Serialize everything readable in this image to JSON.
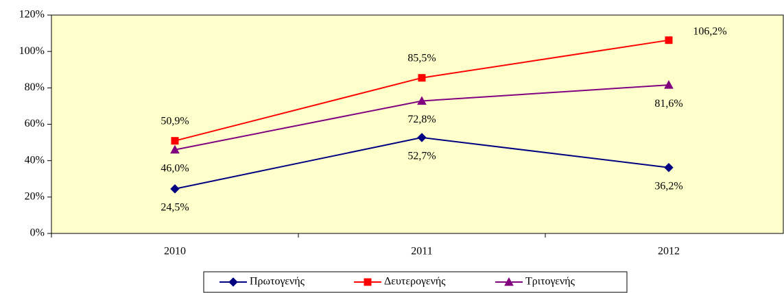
{
  "chart_data": {
    "type": "line",
    "categories": [
      "2010",
      "2011",
      "2012"
    ],
    "series": [
      {
        "name": "Πρωτογενής",
        "color": "#000080",
        "marker": "diamond",
        "values": [
          24.5,
          52.7,
          36.2
        ],
        "value_labels": [
          "24,5%",
          "52,7%",
          "36,2%"
        ]
      },
      {
        "name": "Δευτερογενής",
        "color": "#ff0000",
        "marker": "square",
        "values": [
          50.9,
          85.5,
          106.2
        ],
        "value_labels": [
          "50,9%",
          "85,5%",
          "106,2%"
        ]
      },
      {
        "name": "Τριτογενής",
        "color": "#800080",
        "marker": "triangle",
        "values": [
          46.0,
          72.8,
          81.6
        ],
        "value_labels": [
          "46,0%",
          "72,8%",
          "81,6%"
        ]
      }
    ],
    "ylim": [
      0,
      120
    ],
    "yticks": [
      {
        "value": 0,
        "label": "0%"
      },
      {
        "value": 20,
        "label": "20%"
      },
      {
        "value": 40,
        "label": "40%"
      },
      {
        "value": 60,
        "label": "60%"
      },
      {
        "value": 80,
        "label": "80%"
      },
      {
        "value": 100,
        "label": "100%"
      },
      {
        "value": 120,
        "label": "120%"
      }
    ],
    "plot_background": "#ffffcc"
  }
}
